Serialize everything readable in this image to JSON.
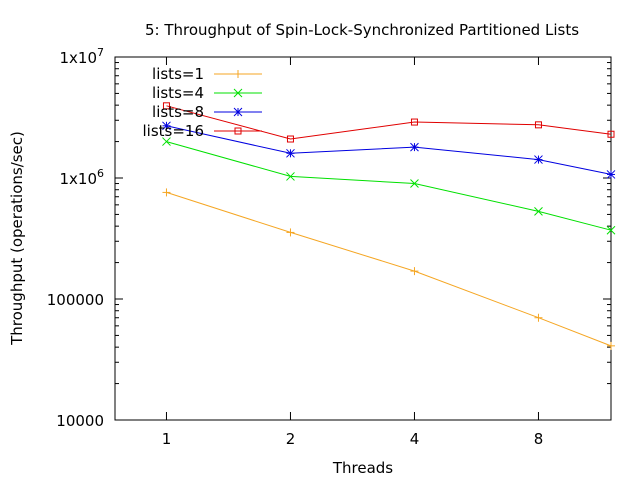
{
  "chart_data": {
    "type": "line",
    "title": "5: Throughput of Spin-Lock-Synchronized Partitioned Lists",
    "xlabel": "Threads",
    "ylabel": "Throughput (operations/sec)",
    "y_scale": "log",
    "ylim": [
      10000,
      10000000
    ],
    "y_ticks": [
      {
        "value": 10000,
        "label": "10000"
      },
      {
        "value": 100000,
        "label": "100000"
      },
      {
        "value": 1000000,
        "base": "1x10",
        "exp": "6"
      },
      {
        "value": 10000000,
        "base": "1x10",
        "exp": "7"
      }
    ],
    "x_scale": "log2",
    "xlim": [
      0.75,
      12
    ],
    "x_ticks": [
      1,
      2,
      4,
      8
    ],
    "x_tick_labels": [
      "1",
      "2",
      "4",
      "8"
    ],
    "legend_position": "top-left",
    "grid": false,
    "x": [
      1,
      2,
      4,
      8,
      12
    ],
    "series": [
      {
        "name": "lists=1",
        "color": "#f5a623",
        "marker": "plus",
        "values": [
          760000,
          355000,
          170000,
          70000,
          41000
        ]
      },
      {
        "name": "lists=4",
        "color": "#00e000",
        "marker": "cross",
        "values": [
          2000000,
          1030000,
          900000,
          530000,
          370000
        ]
      },
      {
        "name": "lists=8",
        "color": "#0000e0",
        "marker": "star",
        "values": [
          2700000,
          1600000,
          1800000,
          1420000,
          1070000
        ]
      },
      {
        "name": "lists=16",
        "color": "#e00000",
        "marker": "square",
        "values": [
          3950000,
          2100000,
          2900000,
          2750000,
          2300000
        ]
      }
    ]
  }
}
